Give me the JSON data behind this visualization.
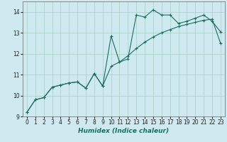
{
  "xlabel": "Humidex (Indice chaleur)",
  "background_color": "#cfe9f0",
  "grid_color": "#a8cfc0",
  "line_color": "#1a6e60",
  "xlim": [
    -0.5,
    23.5
  ],
  "ylim": [
    9.0,
    14.5
  ],
  "yticks": [
    9,
    10,
    11,
    12,
    13,
    14
  ],
  "xticks": [
    0,
    1,
    2,
    3,
    4,
    5,
    6,
    7,
    8,
    9,
    10,
    11,
    12,
    13,
    14,
    15,
    16,
    17,
    18,
    19,
    20,
    21,
    22,
    23
  ],
  "series1_x": [
    0,
    1,
    2,
    3,
    4,
    5,
    6,
    7,
    8,
    9,
    10,
    11,
    12,
    13,
    14,
    15,
    16,
    17,
    18,
    19,
    20,
    21,
    22,
    23
  ],
  "series1_y": [
    9.2,
    9.8,
    9.9,
    10.4,
    10.5,
    10.6,
    10.65,
    10.35,
    11.05,
    10.45,
    12.85,
    11.6,
    11.75,
    13.85,
    13.75,
    14.1,
    13.85,
    13.85,
    13.45,
    13.55,
    13.7,
    13.85,
    13.55,
    13.05
  ],
  "series2_x": [
    0,
    1,
    2,
    3,
    4,
    5,
    6,
    7,
    8,
    9,
    10,
    11,
    12,
    13,
    14,
    15,
    16,
    17,
    18,
    19,
    20,
    21,
    22,
    23
  ],
  "series2_y": [
    9.2,
    9.8,
    9.9,
    10.4,
    10.5,
    10.6,
    10.65,
    10.35,
    11.05,
    10.45,
    11.4,
    11.6,
    11.9,
    12.25,
    12.55,
    12.8,
    13.0,
    13.15,
    13.3,
    13.4,
    13.5,
    13.6,
    13.65,
    12.5
  ]
}
